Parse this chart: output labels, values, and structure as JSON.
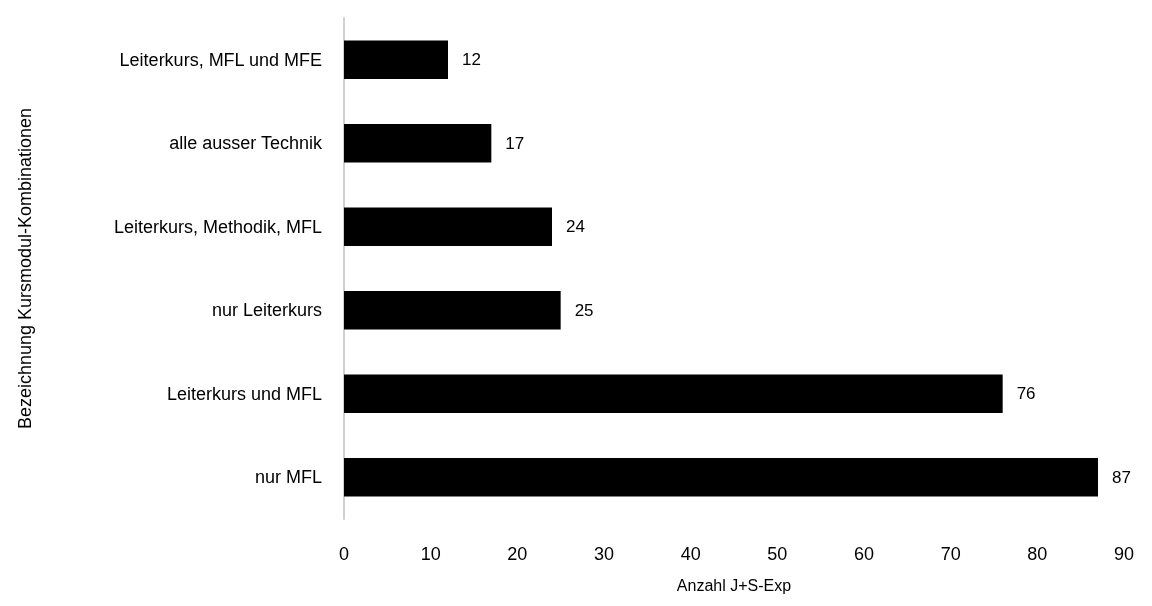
{
  "chart_data": {
    "type": "bar",
    "orientation": "horizontal",
    "xlabel": "Anzahl J+S-Exp",
    "ylabel": "Bezeichnung Kursmodul-Kombinationen",
    "categories": [
      "Leiterkurs, MFL und MFE",
      "alle ausser Technik",
      "Leiterkurs, Methodik, MFL",
      "nur Leiterkurs",
      "Leiterkurs und MFL",
      "nur MFL"
    ],
    "values": [
      12,
      17,
      24,
      25,
      76,
      87
    ],
    "color": "#000000",
    "xlim": [
      0,
      90
    ],
    "xticks": [
      0,
      10,
      20,
      30,
      40,
      50,
      60,
      70,
      80,
      90
    ],
    "grid": false,
    "data_labels": true
  }
}
